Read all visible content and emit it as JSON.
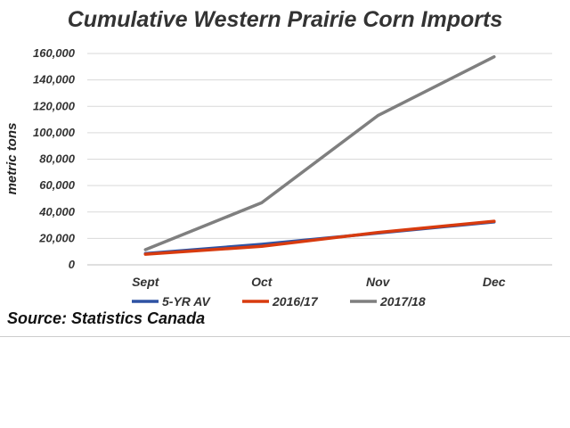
{
  "chart_data": {
    "type": "line",
    "title": "Cumulative Western Prairie Corn Imports",
    "ylabel": "metric tons",
    "xlabel": "",
    "categories": [
      "Sept",
      "Oct",
      "Nov",
      "Dec"
    ],
    "ylim": [
      0,
      160000
    ],
    "yticks": [
      0,
      20000,
      40000,
      60000,
      80000,
      100000,
      120000,
      140000,
      160000
    ],
    "ytick_labels": [
      "0",
      "20,000",
      "40,000",
      "60,000",
      "80,000",
      "100,000",
      "120,000",
      "140,000",
      "160,000"
    ],
    "grid": true,
    "legend_position": "bottom",
    "series": [
      {
        "name": "5-YR  AV",
        "color": "#2e52a3",
        "values": [
          8500,
          15500,
          24000,
          32500
        ]
      },
      {
        "name": "2016/17",
        "color": "#d83b0f",
        "values": [
          8000,
          14000,
          24500,
          33000
        ]
      },
      {
        "name": "2017/18",
        "color": "#7f7f7f",
        "values": [
          11500,
          47000,
          113000,
          157500
        ]
      }
    ]
  },
  "source": "Source: Statistics Canada"
}
